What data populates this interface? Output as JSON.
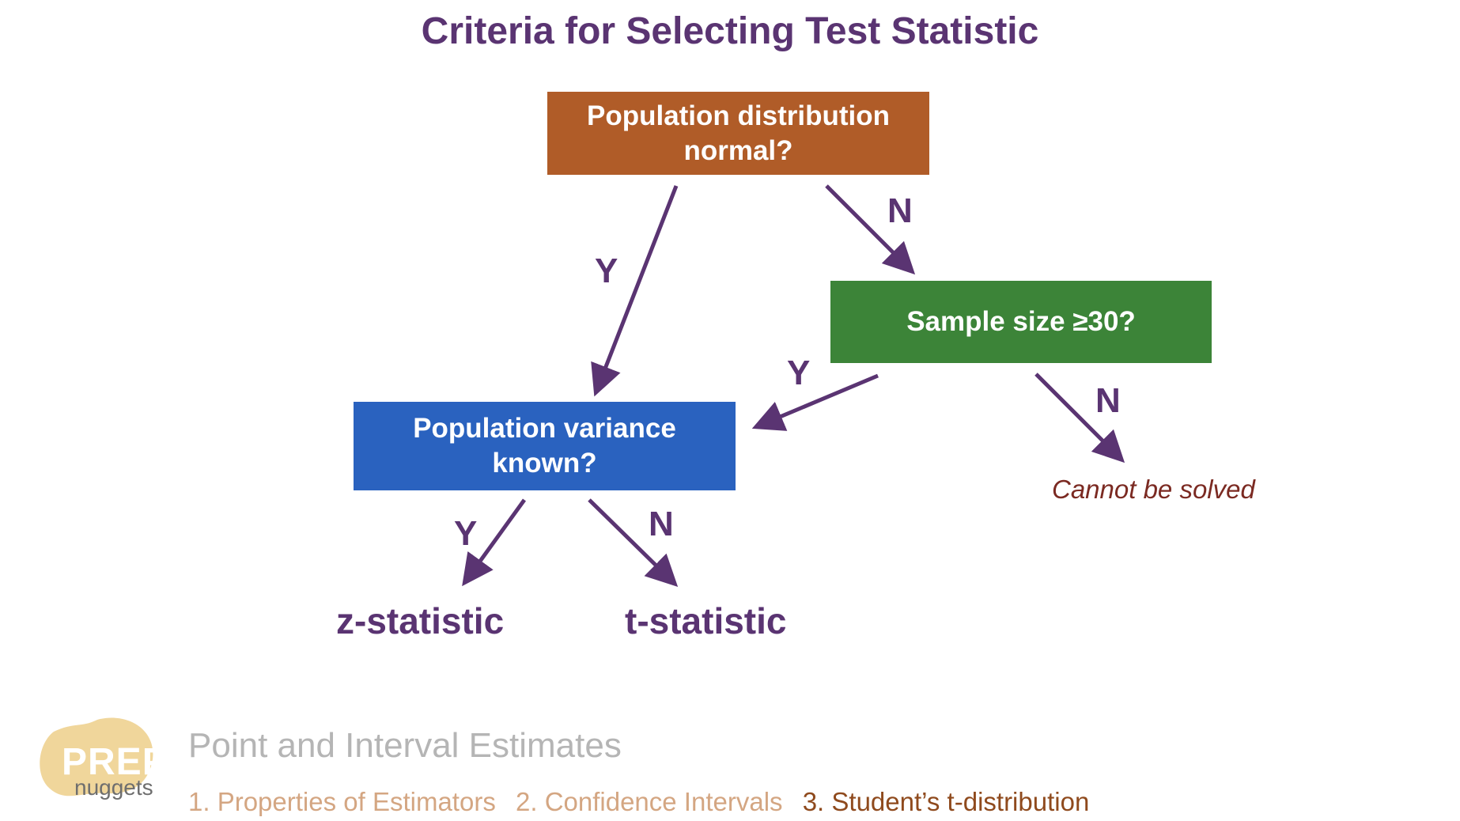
{
  "title": "Criteria for Selecting Test Statistic",
  "nodes": {
    "population_normal": "Population distribution normal?",
    "sample_size": "Sample size ≥30?",
    "variance_known": "Population variance known?"
  },
  "edge_labels": {
    "normal_no": "N",
    "normal_yes": "Y",
    "sample_yes": "Y",
    "sample_no": "N",
    "variance_yes": "Y",
    "variance_no": "N"
  },
  "outcomes": {
    "z": "z-statistic",
    "t": "t-statistic",
    "unsolvable": "Cannot be solved"
  },
  "footer": {
    "logo_top": "PREP",
    "logo_bottom": "nuggets",
    "section_title": "Point and Interval Estimates",
    "nav": [
      "1. Properties of Estimators",
      "2. Confidence Intervals",
      "3. Student’s t-distribution"
    ],
    "active_nav_index": 2
  },
  "colors": {
    "title": "#5a3472",
    "arrow": "#5a3472",
    "orange_box": "#b05c28",
    "green_box": "#3c8438",
    "blue_box": "#2a62bf",
    "cannot_text": "#7b2a22"
  }
}
